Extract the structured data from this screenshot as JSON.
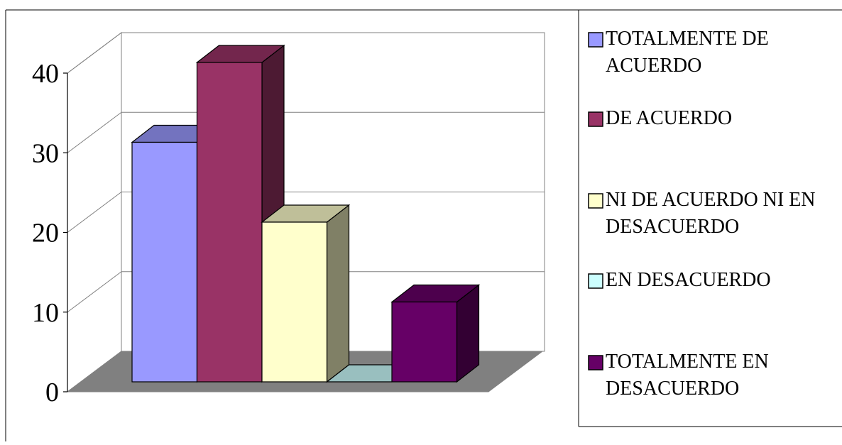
{
  "chart_data": {
    "type": "bar",
    "style": "3d-column",
    "categories": [
      "TOTALMENTE DE ACUERDO",
      "DE ACUERDO",
      "NI DE ACUERDO NI EN DESACUERDO",
      "EN DESACUERDO",
      "TOTALMENTE EN DESACUERDO"
    ],
    "values": [
      30,
      40,
      20,
      0,
      10
    ],
    "colors": [
      "#9999ff",
      "#993366",
      "#ffffcc",
      "#ccffff",
      "#660066"
    ],
    "yticks": [
      "0",
      "10",
      "20",
      "30",
      "40"
    ],
    "ylim": [
      0,
      40
    ],
    "grid": true,
    "legend": {
      "position": "right",
      "entries": [
        [
          "TOTALMENTE DE",
          "ACUERDO"
        ],
        [
          "DE ACUERDO"
        ],
        [
          "NI DE ACUERDO NI EN",
          "DESACUERDO"
        ],
        [
          "EN DESACUERDO"
        ],
        [
          "TOTALMENTE EN",
          "DESACUERDO"
        ]
      ]
    },
    "title": "",
    "xlabel": "",
    "ylabel": ""
  }
}
